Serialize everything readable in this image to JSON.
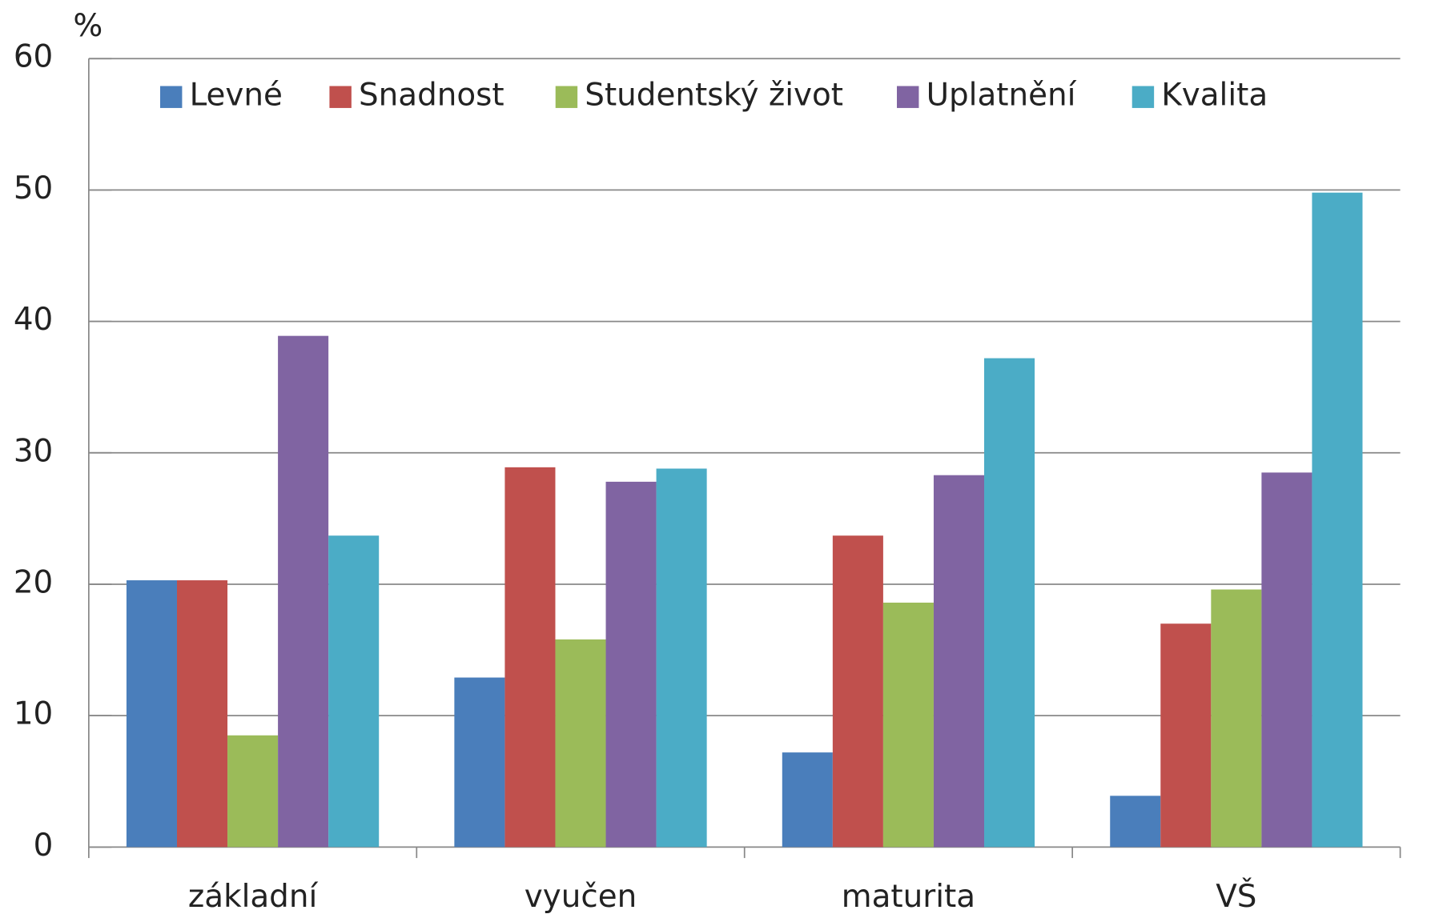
{
  "chart_data": {
    "type": "bar",
    "y_label": "%",
    "categories": [
      "základní",
      "vyučen",
      "maturita",
      "VŠ"
    ],
    "series": [
      {
        "name": "Levné",
        "color": "#4a7ebb",
        "values": [
          20.3,
          12.9,
          7.2,
          3.9
        ]
      },
      {
        "name": "Snadnost",
        "color": "#c0504d",
        "values": [
          20.3,
          28.9,
          23.7,
          17.0
        ]
      },
      {
        "name": "Studentský život",
        "color": "#9bbb59",
        "values": [
          8.5,
          15.8,
          18.6,
          19.6
        ]
      },
      {
        "name": "Uplatnění",
        "color": "#8064a2",
        "values": [
          38.9,
          27.8,
          28.3,
          28.5
        ]
      },
      {
        "name": "Kvalita",
        "color": "#4bacc6",
        "values": [
          23.7,
          28.8,
          37.2,
          49.8
        ]
      }
    ],
    "ylim": [
      0,
      60
    ],
    "yticks": [
      0,
      10,
      20,
      30,
      40,
      50,
      60
    ],
    "grid": true,
    "legend": "top"
  }
}
